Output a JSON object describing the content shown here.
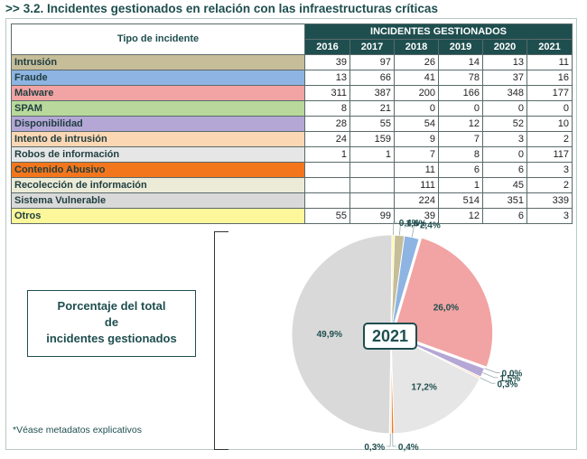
{
  "title": {
    "arrows": ">>",
    "text": "3.2. Incidentes gestionados en relación con las infraestructuras críticas"
  },
  "table": {
    "tipo_header": "Tipo de incidente",
    "gestion_header": "INCIDENTES GESTIONADOS",
    "years": [
      "2016",
      "2017",
      "2018",
      "2019",
      "2020",
      "2021"
    ],
    "rows": [
      {
        "label": "Intrusión",
        "color": "#c6bd99",
        "values": [
          "39",
          "97",
          "26",
          "14",
          "13",
          "11"
        ]
      },
      {
        "label": "Fraude",
        "color": "#8db4e2",
        "values": [
          "13",
          "66",
          "41",
          "78",
          "37",
          "16"
        ]
      },
      {
        "label": "Malware",
        "color": "#f2a3a3",
        "values": [
          "311",
          "387",
          "200",
          "166",
          "348",
          "177"
        ]
      },
      {
        "label": "SPAM",
        "color": "#b8d99b",
        "values": [
          "8",
          "21",
          "0",
          "0",
          "0",
          "0"
        ]
      },
      {
        "label": "Disponibilidad",
        "color": "#b4a7d6",
        "values": [
          "28",
          "55",
          "54",
          "12",
          "52",
          "10"
        ]
      },
      {
        "label": "Intento de intrusión",
        "color": "#fbd7b4",
        "values": [
          "24",
          "159",
          "9",
          "7",
          "3",
          "2"
        ]
      },
      {
        "label": "Robos de información",
        "color": "#e6e6e6",
        "values": [
          "1",
          "1",
          "7",
          "8",
          "0",
          "117"
        ]
      },
      {
        "label": "Contenido Abusivo",
        "color": "#f3761c",
        "values": [
          "",
          "",
          "11",
          "6",
          "6",
          "3"
        ]
      },
      {
        "label": "Recolección de información",
        "color": "#ecebd7",
        "values": [
          "",
          "",
          "111",
          "1",
          "45",
          "2"
        ]
      },
      {
        "label": "Sistema Vulnerable",
        "color": "#d9d9d9",
        "values": [
          "",
          "",
          "224",
          "514",
          "351",
          "339"
        ]
      },
      {
        "label": "Otros",
        "color": "#fbf79a",
        "values": [
          "55",
          "99",
          "39",
          "12",
          "6",
          "3"
        ]
      }
    ]
  },
  "pct_box": {
    "line1": "Porcentaje del total",
    "line2": "de",
    "line3": "incidentes gestionados"
  },
  "pie_year": "2021",
  "note": "*Véase metadatos explicativos",
  "chart_data": {
    "type": "pie",
    "title": "2021",
    "slices": [
      {
        "label": "Intrusión",
        "value": 1.6,
        "display": "1,6%",
        "color": "#c6bd99"
      },
      {
        "label": "Fraude",
        "value": 2.4,
        "display": "2,4%",
        "color": "#8db4e2"
      },
      {
        "label": "Malware",
        "value": 26.0,
        "display": "26,0%",
        "color": "#f2a3a3"
      },
      {
        "label": "SPAM",
        "value": 0.0,
        "display": "0,0%",
        "color": "#b8d99b"
      },
      {
        "label": "Disponibilidad",
        "value": 1.5,
        "display": "1,5%",
        "color": "#b4a7d6"
      },
      {
        "label": "Intento de intrusión",
        "value": 0.3,
        "display": "0,3%",
        "color": "#fbd7b4"
      },
      {
        "label": "Robos de información",
        "value": 17.2,
        "display": "17,2%",
        "color": "#e6e6e6"
      },
      {
        "label": "Contenido Abusivo",
        "value": 0.4,
        "display": "0,4%",
        "color": "#f3761c"
      },
      {
        "label": "Recolección de información",
        "value": 0.3,
        "display": "0,3%",
        "color": "#ecebd7"
      },
      {
        "label": "Sistema Vulnerable",
        "value": 49.9,
        "display": "49,9%",
        "color": "#d9d9d9"
      },
      {
        "label": "Otros",
        "value": 0.4,
        "display": "0,4%",
        "color": "#fbf79a"
      }
    ]
  }
}
